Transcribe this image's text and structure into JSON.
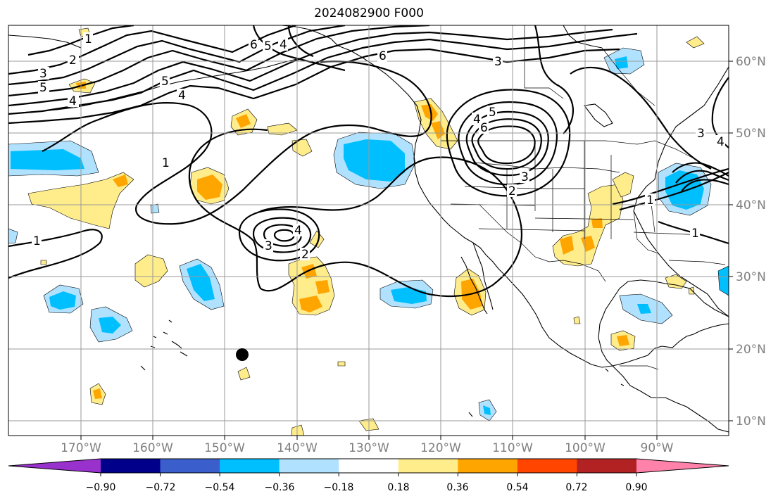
{
  "title": "2024082900 F000",
  "longitude_labels": [
    "170°W",
    "160°W",
    "150°W",
    "140°W",
    "130°W",
    "120°W",
    "110°W",
    "100°W",
    "90°W"
  ],
  "latitude_labels": [
    "60°N",
    "50°N",
    "40°N",
    "30°N",
    "20°N",
    "10°N"
  ],
  "colorbar": {
    "ticks": [
      "−0.90",
      "−0.72",
      "−0.54",
      "−0.36",
      "−0.18",
      "0.18",
      "0.36",
      "0.54",
      "0.72",
      "0.90"
    ],
    "colors": [
      "#9932cc",
      "#00008b",
      "#3a5fcd",
      "#00bfff",
      "#b0e2ff",
      "#ffffff",
      "#ffec8b",
      "#ffa500",
      "#ff4500",
      "#b22222",
      "#ff82ab"
    ]
  },
  "contour_labels": [
    "1",
    "2",
    "3",
    "4",
    "5",
    "6"
  ],
  "fill_colors": {
    "light_yellow": "#ffec8b",
    "orange": "#ffa500",
    "light_blue": "#b0e2ff",
    "deep_sky_blue": "#00bfff"
  },
  "marker": {
    "name": "black-dot",
    "color": "#000000"
  }
}
